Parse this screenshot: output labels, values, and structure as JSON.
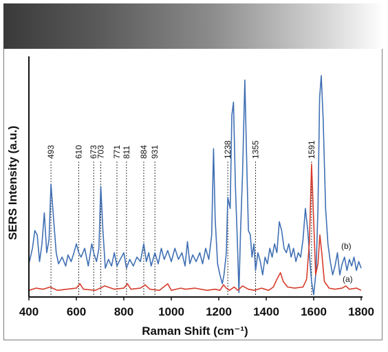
{
  "chart_data": {
    "type": "line",
    "title": "",
    "xlabel": "Raman Shift (cm⁻¹)",
    "ylabel": "SERS Intensity (a.u.)",
    "xlim": [
      400,
      1800
    ],
    "ylim": [
      0,
      1
    ],
    "x_ticks": [
      400,
      600,
      800,
      1000,
      1200,
      1400,
      1600,
      1800
    ],
    "grid": false,
    "peak_markers": [
      493,
      610,
      673,
      703,
      771,
      811,
      884,
      931,
      1238,
      1355,
      1591
    ],
    "series": [
      {
        "name": "(b)",
        "color": "#3f6fb3",
        "points": [
          [
            400,
            0.15
          ],
          [
            415,
            0.22
          ],
          [
            425,
            0.3
          ],
          [
            435,
            0.28
          ],
          [
            445,
            0.16
          ],
          [
            455,
            0.24
          ],
          [
            465,
            0.38
          ],
          [
            475,
            0.2
          ],
          [
            485,
            0.26
          ],
          [
            493,
            0.51
          ],
          [
            505,
            0.34
          ],
          [
            515,
            0.2
          ],
          [
            525,
            0.15
          ],
          [
            540,
            0.18
          ],
          [
            555,
            0.14
          ],
          [
            565,
            0.19
          ],
          [
            578,
            0.16
          ],
          [
            590,
            0.2
          ],
          [
            600,
            0.24
          ],
          [
            610,
            0.2
          ],
          [
            620,
            0.18
          ],
          [
            635,
            0.22
          ],
          [
            650,
            0.14
          ],
          [
            665,
            0.24
          ],
          [
            673,
            0.2
          ],
          [
            685,
            0.16
          ],
          [
            695,
            0.22
          ],
          [
            703,
            0.5
          ],
          [
            712,
            0.3
          ],
          [
            722,
            0.13
          ],
          [
            735,
            0.17
          ],
          [
            748,
            0.14
          ],
          [
            760,
            0.2
          ],
          [
            771,
            0.14
          ],
          [
            785,
            0.17
          ],
          [
            800,
            0.2
          ],
          [
            811,
            0.13
          ],
          [
            825,
            0.17
          ],
          [
            840,
            0.14
          ],
          [
            855,
            0.18
          ],
          [
            870,
            0.16
          ],
          [
            884,
            0.24
          ],
          [
            895,
            0.16
          ],
          [
            905,
            0.2
          ],
          [
            915,
            0.14
          ],
          [
            931,
            0.2
          ],
          [
            945,
            0.15
          ],
          [
            958,
            0.22
          ],
          [
            970,
            0.17
          ],
          [
            985,
            0.21
          ],
          [
            1000,
            0.16
          ],
          [
            1015,
            0.22
          ],
          [
            1030,
            0.17
          ],
          [
            1045,
            0.2
          ],
          [
            1058,
            0.14
          ],
          [
            1068,
            0.25
          ],
          [
            1078,
            0.15
          ],
          [
            1090,
            0.19
          ],
          [
            1105,
            0.16
          ],
          [
            1120,
            0.2
          ],
          [
            1132,
            0.15
          ],
          [
            1145,
            0.22
          ],
          [
            1158,
            0.17
          ],
          [
            1170,
            0.28
          ],
          [
            1178,
            0.67
          ],
          [
            1185,
            0.35
          ],
          [
            1195,
            0.15
          ],
          [
            1205,
            0.1
          ],
          [
            1215,
            0.06
          ],
          [
            1222,
            0.1
          ],
          [
            1232,
            0.2
          ],
          [
            1238,
            0.45
          ],
          [
            1248,
            0.4
          ],
          [
            1255,
            0.82
          ],
          [
            1262,
            0.88
          ],
          [
            1270,
            0.5
          ],
          [
            1280,
            0.2
          ],
          [
            1285,
            0.02
          ],
          [
            1292,
            0.3
          ],
          [
            1300,
            0.55
          ],
          [
            1310,
            0.98
          ],
          [
            1318,
            0.6
          ],
          [
            1325,
            0.3
          ],
          [
            1333,
            0.28
          ],
          [
            1340,
            0.18
          ],
          [
            1348,
            0.24
          ],
          [
            1355,
            0.12
          ],
          [
            1365,
            0.2
          ],
          [
            1375,
            0.16
          ],
          [
            1385,
            0.1
          ],
          [
            1395,
            0.18
          ],
          [
            1405,
            0.15
          ],
          [
            1415,
            0.22
          ],
          [
            1425,
            0.18
          ],
          [
            1435,
            0.24
          ],
          [
            1445,
            0.2
          ],
          [
            1455,
            0.34
          ],
          [
            1465,
            0.3
          ],
          [
            1475,
            0.22
          ],
          [
            1485,
            0.2
          ],
          [
            1495,
            0.24
          ],
          [
            1505,
            0.18
          ],
          [
            1515,
            0.22
          ],
          [
            1525,
            0.16
          ],
          [
            1535,
            0.2
          ],
          [
            1545,
            0.18
          ],
          [
            1555,
            0.26
          ],
          [
            1565,
            0.4
          ],
          [
            1575,
            0.3
          ],
          [
            1585,
            0.15
          ],
          [
            1591,
            0.07
          ],
          [
            1600,
            0.01
          ],
          [
            1610,
            0.12
          ],
          [
            1618,
            0.4
          ],
          [
            1625,
            0.9
          ],
          [
            1632,
            1.0
          ],
          [
            1640,
            0.8
          ],
          [
            1650,
            0.4
          ],
          [
            1660,
            0.24
          ],
          [
            1670,
            0.16
          ],
          [
            1680,
            0.1
          ],
          [
            1690,
            0.14
          ],
          [
            1700,
            0.2
          ],
          [
            1710,
            0.1
          ],
          [
            1720,
            0.15
          ],
          [
            1730,
            0.18
          ],
          [
            1740,
            0.12
          ],
          [
            1750,
            0.17
          ],
          [
            1760,
            0.14
          ],
          [
            1770,
            0.18
          ],
          [
            1780,
            0.12
          ],
          [
            1790,
            0.16
          ],
          [
            1800,
            0.13
          ]
        ]
      },
      {
        "name": "(a)",
        "color": "#d63b2a",
        "points": [
          [
            400,
            0.03
          ],
          [
            430,
            0.04
          ],
          [
            460,
            0.035
          ],
          [
            490,
            0.045
          ],
          [
            520,
            0.03
          ],
          [
            560,
            0.035
          ],
          [
            600,
            0.04
          ],
          [
            615,
            0.06
          ],
          [
            630,
            0.035
          ],
          [
            680,
            0.03
          ],
          [
            720,
            0.05
          ],
          [
            760,
            0.035
          ],
          [
            800,
            0.04
          ],
          [
            815,
            0.06
          ],
          [
            830,
            0.035
          ],
          [
            870,
            0.04
          ],
          [
            890,
            0.055
          ],
          [
            910,
            0.035
          ],
          [
            950,
            0.03
          ],
          [
            985,
            0.06
          ],
          [
            1000,
            0.03
          ],
          [
            1040,
            0.04
          ],
          [
            1060,
            0.035
          ],
          [
            1100,
            0.04
          ],
          [
            1150,
            0.03
          ],
          [
            1185,
            0.035
          ],
          [
            1205,
            0.03
          ],
          [
            1220,
            0.055
          ],
          [
            1232,
            0.04
          ],
          [
            1245,
            0.03
          ],
          [
            1265,
            0.045
          ],
          [
            1280,
            0.03
          ],
          [
            1300,
            0.05
          ],
          [
            1325,
            0.035
          ],
          [
            1350,
            0.03
          ],
          [
            1380,
            0.04
          ],
          [
            1410,
            0.03
          ],
          [
            1430,
            0.045
          ],
          [
            1445,
            0.08
          ],
          [
            1460,
            0.11
          ],
          [
            1472,
            0.07
          ],
          [
            1490,
            0.045
          ],
          [
            1520,
            0.04
          ],
          [
            1555,
            0.045
          ],
          [
            1570,
            0.08
          ],
          [
            1582,
            0.25
          ],
          [
            1591,
            0.6
          ],
          [
            1598,
            0.4
          ],
          [
            1608,
            0.1
          ],
          [
            1618,
            0.15
          ],
          [
            1626,
            0.28
          ],
          [
            1634,
            0.2
          ],
          [
            1645,
            0.07
          ],
          [
            1665,
            0.04
          ],
          [
            1690,
            0.035
          ],
          [
            1720,
            0.04
          ],
          [
            1735,
            0.05
          ],
          [
            1750,
            0.035
          ],
          [
            1780,
            0.04
          ],
          [
            1800,
            0.03
          ]
        ]
      }
    ]
  }
}
